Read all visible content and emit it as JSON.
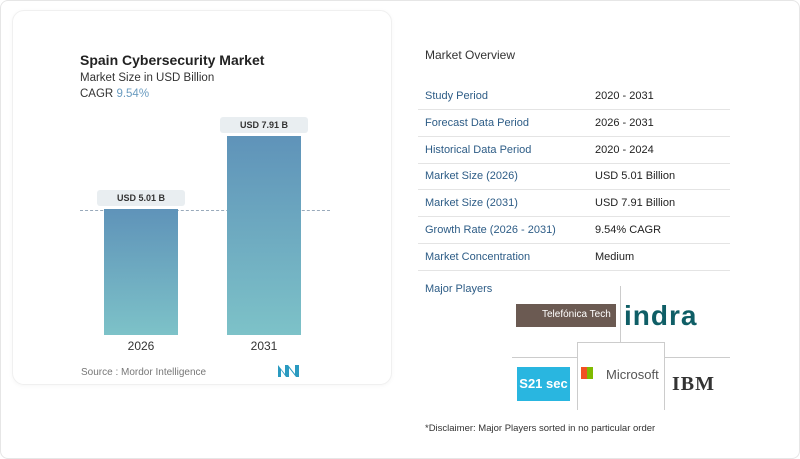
{
  "chart_data": {
    "type": "bar",
    "title": "Spain Cybersecurity Market",
    "subtitle": "Market Size in USD Billion",
    "cagr_label": "CAGR",
    "cagr_value": "9.54%",
    "categories": [
      "2026",
      "2031"
    ],
    "values": [
      5.01,
      7.91
    ],
    "data_labels": [
      "USD 5.01 B",
      "USD 7.91 B"
    ],
    "bar_color_top": "#5f93b9",
    "bar_color_bottom": "#7dc2c8",
    "source": "Source :  Mordor Intelligence"
  },
  "overview": {
    "title": "Market Overview",
    "rows": [
      {
        "k": "Study Period",
        "v": "2020 - 2031"
      },
      {
        "k": "Forecast Data Period",
        "v": "2026 - 2031"
      },
      {
        "k": "Historical Data Period",
        "v": "2020 - 2024"
      },
      {
        "k": "Market Size (2026)",
        "v": "USD 5.01 Billion"
      },
      {
        "k": "Market Size (2031)",
        "v": "USD 7.91 Billion"
      },
      {
        "k": "Growth Rate (2026 - 2031)",
        "v": "9.54% CAGR"
      },
      {
        "k": "Market Concentration",
        "v": "Medium"
      }
    ],
    "players_label": "Major Players",
    "players": [
      "Telefónica Tech",
      "indra",
      "S21 sec",
      "Microsoft",
      "IBM"
    ],
    "disclaimer": "*Disclaimer: Major Players sorted in no particular order"
  }
}
